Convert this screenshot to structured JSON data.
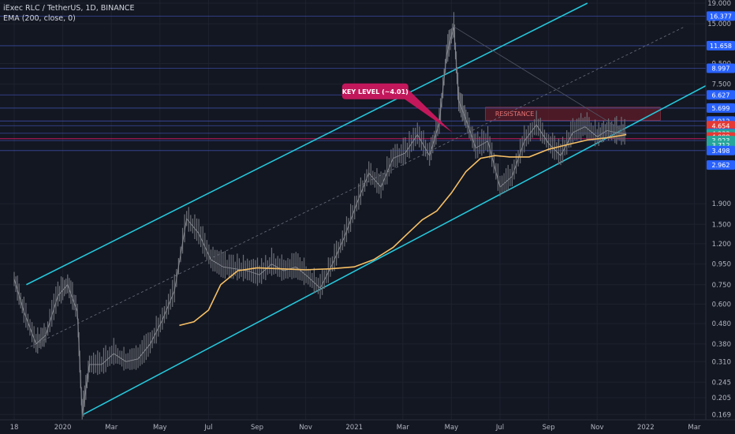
{
  "legend": {
    "symbol_line": "iExec RLC / TetherUS, 1D, BINANCE",
    "indicator_line": "EMA (200, close, 0)"
  },
  "colors": {
    "background": "#131722",
    "grid": "#1e222d",
    "channel": "#26c6da",
    "ema": "#f7c065",
    "candles": "#6b6e75",
    "horizontal_level": "#3a4a9e",
    "key_level_line": "#c2185b",
    "resistance_zone": "#7a1e2a",
    "axis_text": "#b2b5be"
  },
  "chart_data": {
    "type": "line",
    "symbol": "iExec RLC / TetherUS",
    "interval": "1D",
    "exchange": "BINANCE",
    "yscale": "log",
    "ylim": [
      0.159,
      19.0
    ],
    "x_ticks": [
      "18",
      "2020",
      "Mar",
      "May",
      "Jul",
      "Sep",
      "Nov",
      "2021",
      "Mar",
      "May",
      "Jul",
      "Sep",
      "Nov",
      "2022",
      "Mar"
    ],
    "x_tick_index": [
      0,
      1,
      2,
      3,
      4,
      5,
      6,
      7,
      8,
      9,
      10,
      11,
      12,
      13,
      14
    ],
    "y_ticks": [
      19.0,
      15.0,
      9.5,
      7.5,
      1.9,
      1.5,
      1.2,
      0.95,
      0.75,
      0.6,
      0.48,
      0.38,
      0.31,
      0.245,
      0.205,
      0.169
    ],
    "y_tick_labels": [
      "19.000",
      "15.000",
      "9.500",
      "7.500",
      "1.900",
      "1.500",
      "1.200",
      "0.950",
      "0.750",
      "0.600",
      "0.480",
      "0.380",
      "0.310",
      "0.245",
      "0.205",
      "0.169"
    ],
    "price_labels": [
      {
        "value": 16.377,
        "label": "16.377",
        "color": "#2962ff"
      },
      {
        "value": 11.658,
        "label": "11.658",
        "color": "#2962ff"
      },
      {
        "value": 8.997,
        "label": "8.997",
        "color": "#2962ff"
      },
      {
        "value": 6.627,
        "label": "6.627",
        "color": "#2962ff"
      },
      {
        "value": 5.699,
        "label": "5.699",
        "color": "#2962ff"
      },
      {
        "value": 4.912,
        "label": "4.912",
        "color": "#2962ff"
      },
      {
        "value": 4.654,
        "label": "4.654",
        "color": "#e53935"
      },
      {
        "value": 4.267,
        "label": "4.267",
        "color": "#2962ff"
      },
      {
        "value": 4.233,
        "label": "4.233",
        "color": "#26a69a"
      },
      {
        "value": 4.088,
        "label": "4.088",
        "color": "#e53935"
      },
      {
        "value": 3.923,
        "label": "3.923",
        "color": "#26a69a"
      },
      {
        "value": 3.712,
        "label": "3.712",
        "color": "#26a69a"
      },
      {
        "value": 3.498,
        "label": "3.498",
        "color": "#2962ff"
      },
      {
        "value": 2.962,
        "label": "2.962",
        "color": "#2962ff"
      }
    ],
    "horizontal_levels": [
      16.377,
      11.658,
      8.997,
      6.627,
      5.699,
      4.912,
      4.654,
      4.267,
      3.923,
      3.498
    ],
    "key_level": 4.01,
    "resistance_zone": {
      "low": 4.95,
      "high": 5.75,
      "label": "RESISTANCE"
    },
    "annotation": {
      "text": "KEY LEVEL (~4.01)"
    },
    "channel": {
      "upper": [
        [
          0.25,
          0.75
        ],
        [
          11.8,
          19.0
        ]
      ],
      "lower": [
        [
          1.4,
          0.168
        ],
        [
          14.3,
          7.5
        ]
      ],
      "mid": [
        [
          0.25,
          0.36
        ],
        [
          13.8,
          14.5
        ]
      ]
    },
    "series": [
      {
        "type": "line",
        "x": [
          0.0,
          0.2,
          0.45,
          0.65,
          0.9,
          1.1,
          1.3,
          1.4,
          1.55,
          1.8,
          2.05,
          2.3,
          2.55,
          2.8,
          3.05,
          3.3,
          3.55,
          3.8,
          4.05,
          4.3,
          4.55,
          4.8,
          5.05,
          5.3,
          5.55,
          5.8,
          6.05,
          6.3,
          6.55,
          6.8,
          7.05,
          7.3,
          7.55,
          7.8,
          8.05,
          8.3,
          8.55,
          8.75,
          8.9,
          9.05,
          9.15,
          9.3,
          9.5,
          9.75,
          10.0,
          10.25,
          10.5,
          10.75,
          11.0,
          11.25,
          11.5,
          11.75,
          12.0,
          12.2,
          12.4,
          12.6
        ],
        "values": [
          0.8,
          0.55,
          0.38,
          0.42,
          0.66,
          0.75,
          0.55,
          0.17,
          0.3,
          0.3,
          0.34,
          0.31,
          0.32,
          0.38,
          0.5,
          0.7,
          1.6,
          1.35,
          1.0,
          0.92,
          0.9,
          0.88,
          0.84,
          0.95,
          0.88,
          0.92,
          0.82,
          0.72,
          0.95,
          1.3,
          1.9,
          2.7,
          2.3,
          3.2,
          3.4,
          4.2,
          3.3,
          4.8,
          10.5,
          14.5,
          6.2,
          5.0,
          3.6,
          3.9,
          2.3,
          2.6,
          3.9,
          4.7,
          3.8,
          3.3,
          4.3,
          4.6,
          4.1,
          4.4,
          4.3,
          4.233
        ]
      },
      {
        "type": "ema",
        "x": [
          3.4,
          3.7,
          4.0,
          4.25,
          4.6,
          5.0,
          5.5,
          6.0,
          6.5,
          7.0,
          7.4,
          7.8,
          8.1,
          8.4,
          8.7,
          9.0,
          9.3,
          9.6,
          9.9,
          10.2,
          10.6,
          11.0,
          11.4,
          11.8,
          12.2,
          12.6
        ],
        "values": [
          0.47,
          0.49,
          0.56,
          0.75,
          0.88,
          0.91,
          0.9,
          0.89,
          0.9,
          0.92,
          1.0,
          1.15,
          1.35,
          1.58,
          1.75,
          2.15,
          2.75,
          3.2,
          3.3,
          3.25,
          3.25,
          3.55,
          3.75,
          3.95,
          4.05,
          4.2
        ]
      }
    ]
  }
}
